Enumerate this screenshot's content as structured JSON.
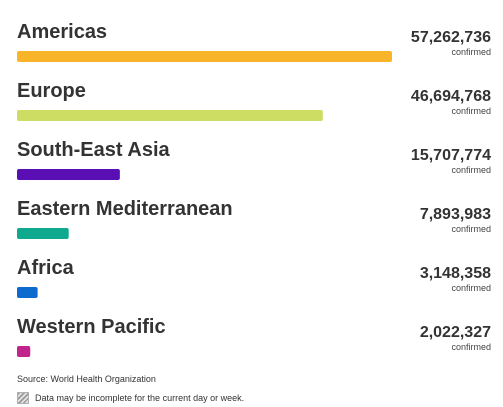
{
  "chart_data": {
    "type": "bar",
    "orientation": "horizontal",
    "categories": [
      "Americas",
      "Europe",
      "South-East Asia",
      "Eastern Mediterranean",
      "Africa",
      "Western Pacific"
    ],
    "values": [
      57262736,
      46694768,
      15707774,
      7893983,
      3148358,
      2022327
    ],
    "value_labels": [
      "57,262,736",
      "46,694,768",
      "15,707,774",
      "7,893,983",
      "3,148,358",
      "2,022,327"
    ],
    "unit_label": "confirmed",
    "colors": [
      "#f9b52a",
      "#cddc63",
      "#5a0fb5",
      "#0ea98f",
      "#0d6bcf",
      "#c1258b"
    ],
    "xlim": [
      0,
      57262736
    ],
    "grid": false,
    "legend": "none"
  },
  "footer": {
    "source": "Source:  World Health Organization",
    "note": "Data may be incomplete for the current day or week."
  }
}
